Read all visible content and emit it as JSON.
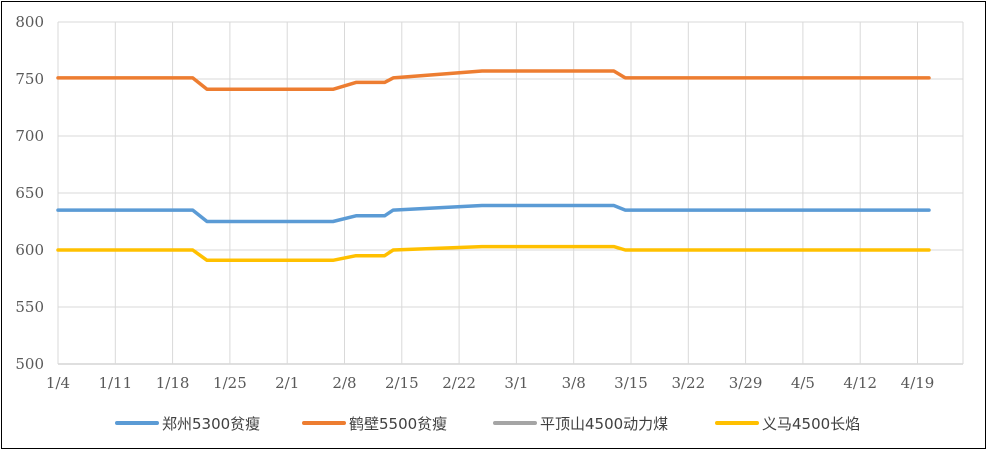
{
  "chart_data": {
    "type": "line",
    "title": "",
    "xlabel": "",
    "ylabel": "",
    "ylim": [
      500,
      800
    ],
    "yticks": [
      500,
      550,
      600,
      650,
      700,
      750,
      800
    ],
    "categories": [
      "1/4",
      "1/11",
      "1/18",
      "1/25",
      "2/1",
      "2/8",
      "2/15",
      "2/22",
      "3/1",
      "3/8",
      "3/15",
      "3/22",
      "3/29",
      "4/5",
      "4/12",
      "4/19"
    ],
    "grid": "vertical-and-horizontal",
    "legend_position": "bottom",
    "series": [
      {
        "name": "郑州5300贫瘦",
        "color": "#5B9BD5",
        "points": [
          [
            0,
            635
          ],
          [
            2.35,
            635
          ],
          [
            2.6,
            625
          ],
          [
            4.8,
            625
          ],
          [
            5.2,
            630
          ],
          [
            5.7,
            630
          ],
          [
            5.85,
            635
          ],
          [
            7.4,
            639
          ],
          [
            9.7,
            639
          ],
          [
            9.9,
            635
          ],
          [
            15.2,
            635
          ]
        ]
      },
      {
        "name": "鹤壁5500贫瘦",
        "color": "#ED7D31",
        "points": [
          [
            0,
            751
          ],
          [
            2.35,
            751
          ],
          [
            2.6,
            741
          ],
          [
            4.8,
            741
          ],
          [
            5.2,
            747
          ],
          [
            5.7,
            747
          ],
          [
            5.85,
            751
          ],
          [
            7.4,
            757
          ],
          [
            9.7,
            757
          ],
          [
            9.9,
            751
          ],
          [
            15.2,
            751
          ]
        ]
      },
      {
        "name": "平顶山4500动力煤",
        "color": "#A5A5A5",
        "points": []
      },
      {
        "name": "义马4500长焰",
        "color": "#FFC000",
        "points": [
          [
            0,
            600
          ],
          [
            2.35,
            600
          ],
          [
            2.6,
            591
          ],
          [
            4.8,
            591
          ],
          [
            5.2,
            595
          ],
          [
            5.7,
            595
          ],
          [
            5.85,
            600
          ],
          [
            7.4,
            603
          ],
          [
            9.7,
            603
          ],
          [
            9.9,
            600
          ],
          [
            15.2,
            600
          ]
        ]
      }
    ]
  }
}
